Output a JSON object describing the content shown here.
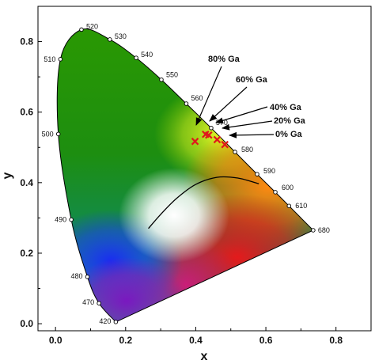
{
  "chart_data": {
    "type": "scatter",
    "title": "",
    "xlabel": "x",
    "ylabel": "y",
    "xlim": [
      -0.05,
      0.9
    ],
    "ylim": [
      -0.02,
      0.9
    ],
    "x_ticks": [
      "0.0",
      "0.2",
      "0.4",
      "0.6",
      "0.8"
    ],
    "x_tick_values": [
      0.0,
      0.2,
      0.4,
      0.6,
      0.8
    ],
    "y_ticks": [
      "0.0",
      "0.2",
      "0.4",
      "0.6",
      "0.8"
    ],
    "y_tick_values": [
      0.0,
      0.2,
      0.4,
      0.6,
      0.8
    ],
    "grid": false,
    "spectral_locus": [
      {
        "label": "420",
        "x": 0.172,
        "y": 0.005
      },
      {
        "label": "470",
        "x": 0.124,
        "y": 0.058
      },
      {
        "label": "480",
        "x": 0.091,
        "y": 0.133
      },
      {
        "label": "490",
        "x": 0.045,
        "y": 0.295
      },
      {
        "label": "500",
        "x": 0.008,
        "y": 0.538
      },
      {
        "label": "510",
        "x": 0.014,
        "y": 0.75
      },
      {
        "label": "520",
        "x": 0.074,
        "y": 0.834
      },
      {
        "label": "530",
        "x": 0.155,
        "y": 0.806
      },
      {
        "label": "540",
        "x": 0.23,
        "y": 0.754
      },
      {
        "label": "550",
        "x": 0.302,
        "y": 0.692
      },
      {
        "label": "560",
        "x": 0.373,
        "y": 0.624
      },
      {
        "label": "570",
        "x": 0.444,
        "y": 0.555
      },
      {
        "label": "580",
        "x": 0.512,
        "y": 0.487
      },
      {
        "label": "590",
        "x": 0.575,
        "y": 0.424
      },
      {
        "label": "600",
        "x": 0.627,
        "y": 0.373
      },
      {
        "label": "610",
        "x": 0.666,
        "y": 0.334
      },
      {
        "label": "680",
        "x": 0.735,
        "y": 0.265
      }
    ],
    "planckian_locus": [
      {
        "x": 0.265,
        "y": 0.27
      },
      {
        "x": 0.3,
        "y": 0.31
      },
      {
        "x": 0.345,
        "y": 0.355
      },
      {
        "x": 0.4,
        "y": 0.395
      },
      {
        "x": 0.46,
        "y": 0.415
      },
      {
        "x": 0.52,
        "y": 0.413
      },
      {
        "x": 0.58,
        "y": 0.397
      }
    ],
    "series": [
      {
        "marker": "x",
        "color": "#e0181c",
        "points": [
          {
            "label": "80% Ga",
            "x": 0.398,
            "y": 0.517
          },
          {
            "label": "60% Ga",
            "x": 0.428,
            "y": 0.537
          },
          {
            "label": "40% Ga",
            "x": 0.437,
            "y": 0.535
          },
          {
            "label": "20% Ga",
            "x": 0.461,
            "y": 0.522
          },
          {
            "label": "0% Ga",
            "x": 0.483,
            "y": 0.508
          }
        ]
      }
    ],
    "annotations": [
      {
        "text": "80% Ga"
      },
      {
        "text": "60% Ga"
      },
      {
        "text": "40% Ga"
      },
      {
        "text": "20% Ga"
      },
      {
        "text": "0% Ga"
      }
    ],
    "legend": "none"
  }
}
